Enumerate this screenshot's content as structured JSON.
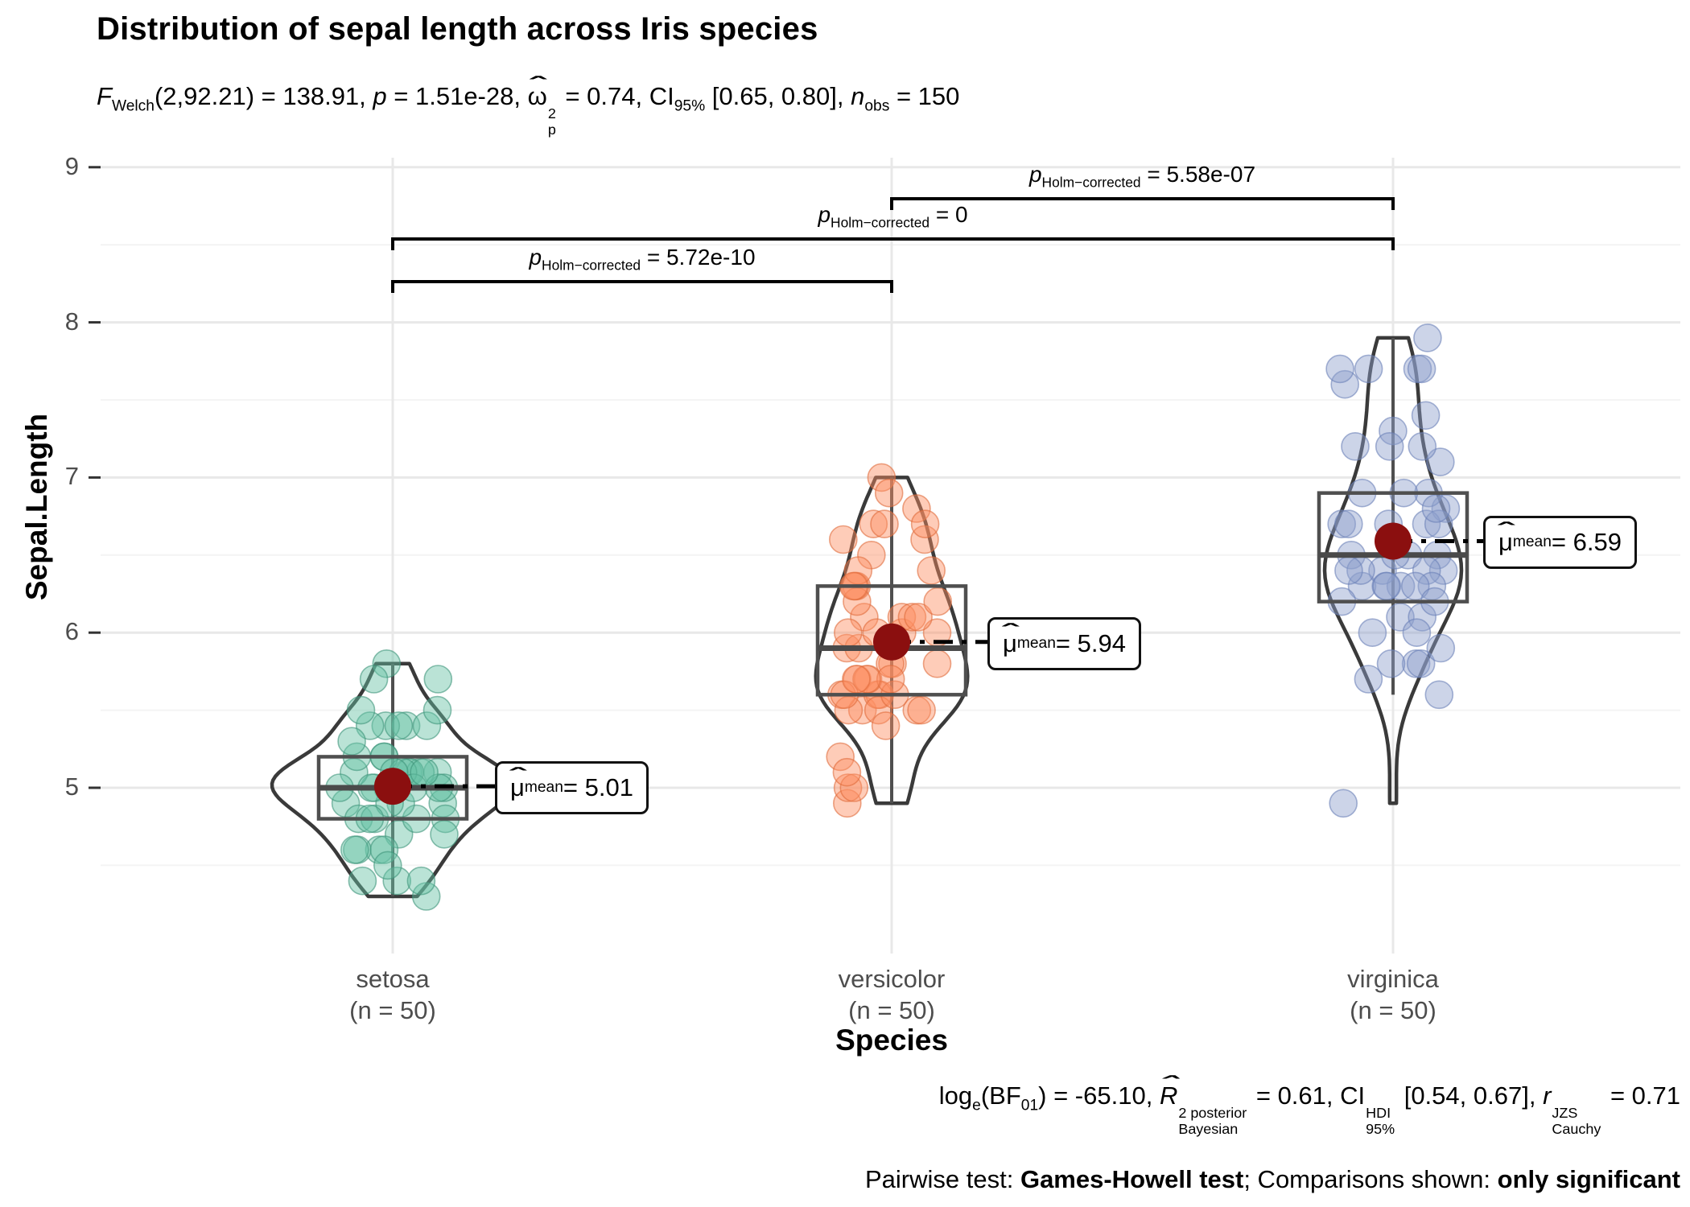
{
  "chart_data": {
    "type": "violin",
    "title": "Distribution of sepal length across Iris species",
    "subtitle_segments": [
      {
        "t": "F",
        "style": "italic"
      },
      {
        "t": "Welch",
        "style": "sub"
      },
      {
        "t": "(2,92.21) = 138.91, "
      },
      {
        "t": "p",
        "style": "italic"
      },
      {
        "t": " = 1.51e-28, "
      },
      {
        "t": "ω",
        "style": "hat"
      },
      {
        "style": "stack",
        "top": "2",
        "bottom": "p"
      },
      {
        "t": " = 0.74, CI"
      },
      {
        "t": "95%",
        "style": "sub"
      },
      {
        "t": " [0.65, 0.80], "
      },
      {
        "t": "n",
        "style": "italic"
      },
      {
        "t": "obs",
        "style": "sub"
      },
      {
        "t": " = 150"
      }
    ],
    "caption_line1_segments": [
      {
        "t": "log"
      },
      {
        "t": "e",
        "style": "sub"
      },
      {
        "t": "(BF"
      },
      {
        "t": "01",
        "style": "sub"
      },
      {
        "t": ") = -65.10, "
      },
      {
        "t": "R",
        "style": "hat-italic"
      },
      {
        "style": "stack",
        "top": "2 posterior",
        "bottom": "Bayesian"
      },
      {
        "t": " = 0.61, CI"
      },
      {
        "style": "stack",
        "top": "HDI",
        "bottom": "95%"
      },
      {
        "t": " [0.54, 0.67], "
      },
      {
        "t": "r",
        "style": "italic"
      },
      {
        "style": "stack",
        "top": "JZS",
        "bottom": "Cauchy"
      },
      {
        "t": " = 0.71"
      }
    ],
    "caption_line2_segments": [
      {
        "t": "Pairwise test: "
      },
      {
        "t": "Games-Howell test",
        "style": "bold"
      },
      {
        "t": "; Comparisons shown: "
      },
      {
        "t": "only significant",
        "style": "bold"
      }
    ],
    "xlabel": "Species",
    "ylabel": "Sepal.Length",
    "y_ticks": [
      9,
      8,
      7,
      6,
      5
    ],
    "y_minor": [
      8.5,
      7.5,
      6.5,
      5.5,
      4.5
    ],
    "ylim": [
      3.95,
      9.05
    ],
    "mean_point_color": "#8b0f0f",
    "groups": [
      {
        "name": "setosa",
        "n_label": "(n = 50)",
        "n": 50,
        "color": "#66c2a5",
        "stroke": "#3d9579",
        "mean": 5.01,
        "mean_label_segments": [
          {
            "t": "μ",
            "style": "hat"
          },
          {
            "t": "mean",
            "style": "sub"
          },
          {
            "t": " = 5.01"
          }
        ],
        "box": {
          "whisker_low": 4.3,
          "q1": 4.8,
          "median": 5.0,
          "q3": 5.2,
          "whisker_high": 5.8
        },
        "values": [
          5.1,
          4.9,
          4.7,
          4.6,
          5.0,
          5.4,
          4.6,
          5.0,
          4.4,
          4.9,
          5.4,
          4.8,
          4.8,
          4.3,
          5.8,
          5.7,
          5.4,
          5.1,
          5.7,
          5.1,
          5.4,
          5.1,
          4.6,
          5.1,
          4.8,
          5.0,
          5.0,
          5.2,
          5.2,
          4.7,
          4.8,
          5.4,
          5.2,
          5.5,
          4.9,
          5.0,
          5.5,
          4.9,
          4.4,
          5.1,
          5.0,
          4.5,
          4.4,
          5.0,
          5.1,
          4.8,
          5.1,
          4.6,
          5.3,
          5.0
        ]
      },
      {
        "name": "versicolor",
        "n_label": "(n = 50)",
        "n": 50,
        "color": "#fc8d62",
        "stroke": "#e06a3b",
        "mean": 5.94,
        "mean_label_segments": [
          {
            "t": "μ",
            "style": "hat"
          },
          {
            "t": "mean",
            "style": "sub"
          },
          {
            "t": " = 5.94"
          }
        ],
        "box": {
          "whisker_low": 4.9,
          "q1": 5.6,
          "median": 5.9,
          "q3": 6.3,
          "whisker_high": 7.0
        },
        "values": [
          7.0,
          6.4,
          6.9,
          5.5,
          6.5,
          5.7,
          6.3,
          4.9,
          6.6,
          5.2,
          5.0,
          5.9,
          6.0,
          6.1,
          5.6,
          6.7,
          5.6,
          5.8,
          6.2,
          5.6,
          5.9,
          6.1,
          6.3,
          6.1,
          6.4,
          6.6,
          6.8,
          6.7,
          6.0,
          5.7,
          5.5,
          5.5,
          5.8,
          6.0,
          5.4,
          6.0,
          6.7,
          6.3,
          5.6,
          5.5,
          5.5,
          6.1,
          5.8,
          5.0,
          5.6,
          5.7,
          5.7,
          6.2,
          5.1,
          5.7
        ]
      },
      {
        "name": "virginica",
        "n_label": "(n = 50)",
        "n": 50,
        "color": "#8da0cb",
        "stroke": "#6b81b8",
        "mean": 6.59,
        "mean_label_segments": [
          {
            "t": "μ",
            "style": "hat"
          },
          {
            "t": "mean",
            "style": "sub"
          },
          {
            "t": " = 6.59"
          }
        ],
        "box": {
          "whisker_low": 5.6,
          "q1": 6.2,
          "median": 6.5,
          "q3": 6.9,
          "whisker_high": 7.9
        },
        "values": [
          6.3,
          5.8,
          7.1,
          6.3,
          6.5,
          7.6,
          4.9,
          7.3,
          6.7,
          7.2,
          6.5,
          6.4,
          6.8,
          5.7,
          5.8,
          6.4,
          6.5,
          7.7,
          7.7,
          6.0,
          6.9,
          5.6,
          7.7,
          6.3,
          6.7,
          7.2,
          6.2,
          6.1,
          6.4,
          7.2,
          7.4,
          7.9,
          6.4,
          6.3,
          6.1,
          7.7,
          6.3,
          6.4,
          6.0,
          6.9,
          6.7,
          6.9,
          5.8,
          6.8,
          6.7,
          6.7,
          6.3,
          6.5,
          6.2,
          5.9
        ]
      }
    ],
    "comparisons": [
      {
        "group_a": "versicolor",
        "group_b": "virginica",
        "label_segments": [
          {
            "t": "p",
            "style": "italic"
          },
          {
            "t": "Holm−corrected",
            "style": "sub"
          },
          {
            "t": " = 5.58e-07"
          }
        ]
      },
      {
        "group_a": "setosa",
        "group_b": "virginica",
        "label_segments": [
          {
            "t": "p",
            "style": "italic"
          },
          {
            "t": "Holm−corrected",
            "style": "sub"
          },
          {
            "t": " = 0"
          }
        ]
      },
      {
        "group_a": "setosa",
        "group_b": "versicolor",
        "label_segments": [
          {
            "t": "p",
            "style": "italic"
          },
          {
            "t": "Holm−corrected",
            "style": "sub"
          },
          {
            "t": " = 5.72e-10"
          }
        ]
      }
    ]
  }
}
